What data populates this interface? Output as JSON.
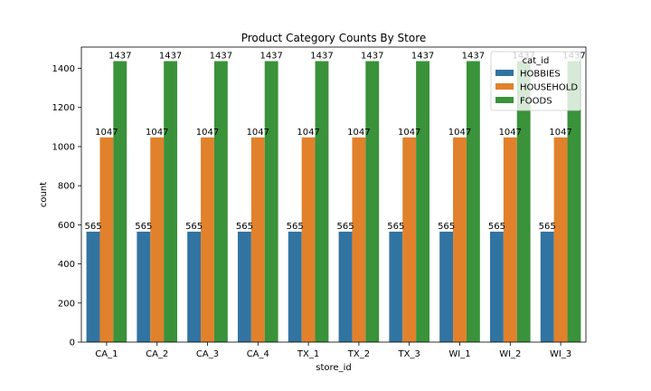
{
  "chart_data": {
    "type": "bar",
    "title": "Product Category Counts By Store",
    "xlabel": "store_id",
    "ylabel": "count",
    "categories": [
      "CA_1",
      "CA_2",
      "CA_3",
      "CA_4",
      "TX_1",
      "TX_2",
      "TX_3",
      "WI_1",
      "WI_2",
      "WI_3"
    ],
    "series": [
      {
        "name": "HOBBIES",
        "color": "#3274a1",
        "values": [
          565,
          565,
          565,
          565,
          565,
          565,
          565,
          565,
          565,
          565
        ]
      },
      {
        "name": "HOUSEHOLD",
        "color": "#e1812c",
        "values": [
          1047,
          1047,
          1047,
          1047,
          1047,
          1047,
          1047,
          1047,
          1047,
          1047
        ]
      },
      {
        "name": "FOODS",
        "color": "#3a923a",
        "values": [
          1437,
          1437,
          1437,
          1437,
          1437,
          1437,
          1437,
          1437,
          1437,
          1437
        ]
      }
    ],
    "ylim": [
      0,
      1508.85
    ],
    "yticks": [
      0,
      200,
      400,
      600,
      800,
      1000,
      1200,
      1400
    ],
    "legend": {
      "title": "cat_id",
      "position": "top-right"
    },
    "grid": false
  }
}
